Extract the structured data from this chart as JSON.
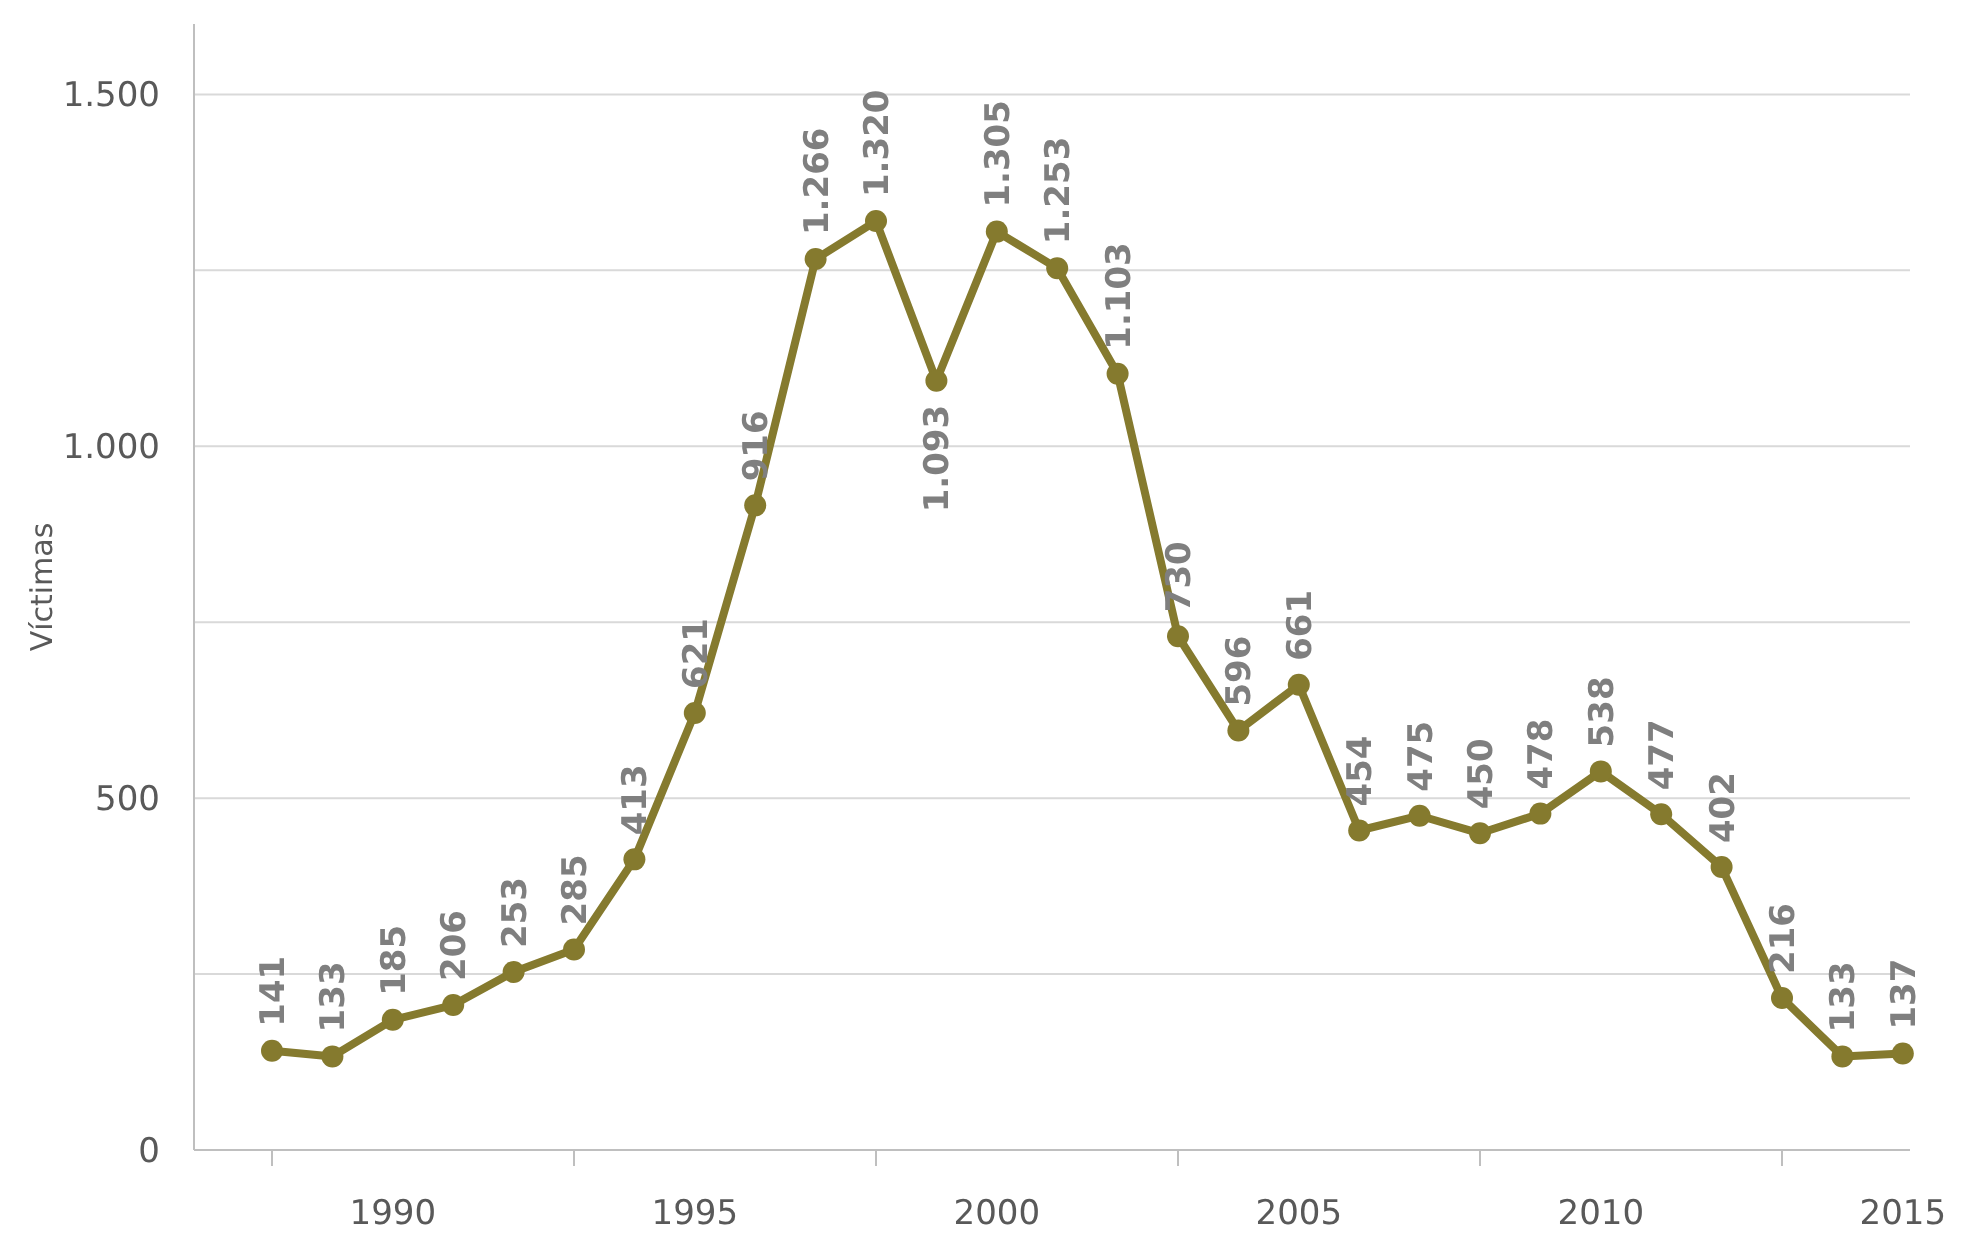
{
  "chart_data": {
    "type": "line",
    "ylabel": "Víctimas",
    "categories": [
      null,
      null,
      "1990",
      null,
      null,
      null,
      null,
      "1995",
      null,
      null,
      null,
      null,
      "2000",
      null,
      null,
      null,
      null,
      "2005",
      null,
      null,
      null,
      null,
      "2010",
      null,
      null,
      null,
      null,
      "2015"
    ],
    "series": [
      {
        "color": "#857a2e",
        "values": [
          141,
          133,
          185,
          206,
          253,
          285,
          413,
          621,
          916,
          1266,
          1320,
          1093,
          1305,
          1253,
          1103,
          730,
          596,
          661,
          454,
          475,
          450,
          478,
          538,
          477,
          402,
          216,
          133,
          137
        ],
        "value_labels": [
          "141",
          "133",
          "185",
          "206",
          "253",
          "285",
          "413",
          "621",
          "916",
          "1.266",
          "1.320",
          "1.093",
          "1.305",
          "1.253",
          "1.103",
          "730",
          "596",
          "661",
          "454",
          "475",
          "450",
          "478",
          "538",
          "477",
          "402",
          "216",
          "133",
          "137"
        ]
      }
    ],
    "ylim": [
      0,
      1600
    ],
    "yticks": [
      {
        "value": 0,
        "label": "0"
      },
      {
        "value": 250,
        "label": null
      },
      {
        "value": 500,
        "label": "500"
      },
      {
        "value": 750,
        "label": null
      },
      {
        "value": 1000,
        "label": "1.000"
      },
      {
        "value": 1250,
        "label": null
      },
      {
        "value": 1500,
        "label": "1.500"
      }
    ],
    "grid": "y",
    "marker": "circle",
    "line_style": "solid"
  }
}
